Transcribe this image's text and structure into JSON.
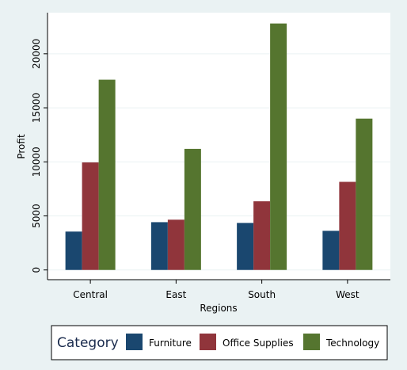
{
  "chart_data": {
    "type": "bar",
    "title": "",
    "xlabel": "Regions",
    "ylabel": "Profit",
    "categories": [
      "Central",
      "East",
      "South",
      "West"
    ],
    "series": [
      {
        "name": "Furniture",
        "color": "#1a476f",
        "values": [
          3550,
          4420,
          4350,
          3620
        ]
      },
      {
        "name": "Office Supplies",
        "color": "#90353b",
        "values": [
          9950,
          4650,
          6350,
          8150
        ]
      },
      {
        "name": "Technology",
        "color": "#55752f",
        "values": [
          17600,
          11200,
          22800,
          14000
        ]
      }
    ],
    "ylim": [
      -900,
      23800
    ],
    "yticks": [
      0,
      5000,
      10000,
      15000,
      20000
    ],
    "ytick_labels": [
      "0",
      "5000",
      "10000",
      "15000",
      "20000"
    ],
    "grid": true,
    "legend": {
      "title": "Category",
      "position": "bottom"
    }
  }
}
